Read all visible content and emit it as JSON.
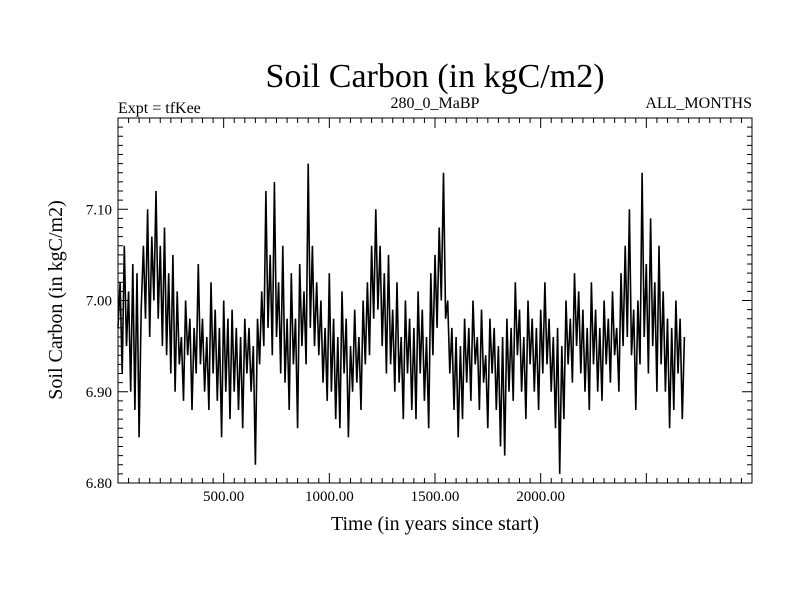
{
  "chart_data": {
    "type": "line",
    "title": "Soil Carbon (in kgC/m2)",
    "subtitle_left": "Expt = tfKee",
    "subtitle_center": "280_0_MaBP",
    "subtitle_right": "ALL_MONTHS",
    "xlabel": "Time (in years since start)",
    "ylabel": "Soil Carbon (in kgC/m2)",
    "xlim": [
      0,
      3000
    ],
    "ylim": [
      6.8,
      7.2
    ],
    "x_tick_labels": [
      {
        "value": 500,
        "label": "500.00"
      },
      {
        "value": 1000,
        "label": "1000.00"
      },
      {
        "value": 1500,
        "label": "1500.00"
      },
      {
        "value": 2000,
        "label": "2000.00"
      }
    ],
    "y_tick_labels": [
      {
        "value": 6.8,
        "label": "6.80"
      },
      {
        "value": 6.9,
        "label": "6.90"
      },
      {
        "value": 7.0,
        "label": "7.00"
      },
      {
        "value": 7.1,
        "label": "7.10"
      }
    ],
    "grid": false,
    "series": [
      {
        "color": "#000000",
        "x_start": 0,
        "x_step": 10,
        "values": [
          6.97,
          7.02,
          6.92,
          7.06,
          6.95,
          7.01,
          6.9,
          7.04,
          6.88,
          7.03,
          6.85,
          6.99,
          7.06,
          6.98,
          7.1,
          6.96,
          7.07,
          7.0,
          7.12,
          6.98,
          7.06,
          6.95,
          7.08,
          6.94,
          7.03,
          6.92,
          7.05,
          6.9,
          7.01,
          6.93,
          6.96,
          6.89,
          7.0,
          6.94,
          6.98,
          6.88,
          6.97,
          6.92,
          7.04,
          6.93,
          6.98,
          6.9,
          6.96,
          6.88,
          7.02,
          6.92,
          6.99,
          6.89,
          6.97,
          6.85,
          7.0,
          6.9,
          6.98,
          6.87,
          6.99,
          6.9,
          6.97,
          6.88,
          6.96,
          6.86,
          6.98,
          6.92,
          6.97,
          6.9,
          6.95,
          6.82,
          6.98,
          6.93,
          7.01,
          6.95,
          7.12,
          6.97,
          7.05,
          6.94,
          7.13,
          6.96,
          7.02,
          6.92,
          7.06,
          6.91,
          6.98,
          6.88,
          7.03,
          6.93,
          6.98,
          6.86,
          7.04,
          6.95,
          7.01,
          6.93,
          7.15,
          6.97,
          7.06,
          6.95,
          7.02,
          6.94,
          7.0,
          6.91,
          6.97,
          6.89,
          7.03,
          6.9,
          6.98,
          6.87,
          6.96,
          6.86,
          7.01,
          6.92,
          6.98,
          6.85,
          6.95,
          6.9,
          6.99,
          6.91,
          6.96,
          6.88,
          7.0,
          6.93,
          7.02,
          6.94,
          7.06,
          6.98,
          7.1,
          6.99,
          7.06,
          6.95,
          7.03,
          6.92,
          7.05,
          6.93,
          6.99,
          6.9,
          7.02,
          6.91,
          6.96,
          6.87,
          7.0,
          6.92,
          6.98,
          6.88,
          6.97,
          6.87,
          7.01,
          6.92,
          6.99,
          6.89,
          6.96,
          6.86,
          7.03,
          6.94,
          7.05,
          6.97,
          7.08,
          7.0,
          7.14,
          6.98,
          7.0,
          6.92,
          6.97,
          6.88,
          6.96,
          6.85,
          6.95,
          6.87,
          6.98,
          6.91,
          6.97,
          6.89,
          7.0,
          6.93,
          6.96,
          6.88,
          6.99,
          6.91,
          6.94,
          6.86,
          6.98,
          6.92,
          6.97,
          6.88,
          6.95,
          6.84,
          6.96,
          6.83,
          6.98,
          6.9,
          6.97,
          6.89,
          7.02,
          6.94,
          6.99,
          6.9,
          6.96,
          6.87,
          7.0,
          6.93,
          6.98,
          6.9,
          6.97,
          6.88,
          6.99,
          6.92,
          7.02,
          6.93,
          6.98,
          6.9,
          6.96,
          6.86,
          6.97,
          6.81,
          6.95,
          6.87,
          7.0,
          6.93,
          6.98,
          6.91,
          7.03,
          6.95,
          7.01,
          6.92,
          6.99,
          6.9,
          6.97,
          6.88,
          7.02,
          6.93,
          6.99,
          6.9,
          6.97,
          6.89,
          7.0,
          6.93,
          6.98,
          6.91,
          7.01,
          6.94,
          6.97,
          6.9,
          7.03,
          6.95,
          7.06,
          6.96,
          7.1,
          6.94,
          6.99,
          6.88,
          7.0,
          6.93,
          7.14,
          6.96,
          7.04,
          6.92,
          7.09,
          6.95,
          7.02,
          6.9,
          7.06,
          6.93,
          7.01,
          6.9,
          6.98,
          6.86,
          6.97,
          6.88,
          7.0,
          6.92,
          6.98,
          6.87,
          6.96
        ]
      }
    ]
  }
}
